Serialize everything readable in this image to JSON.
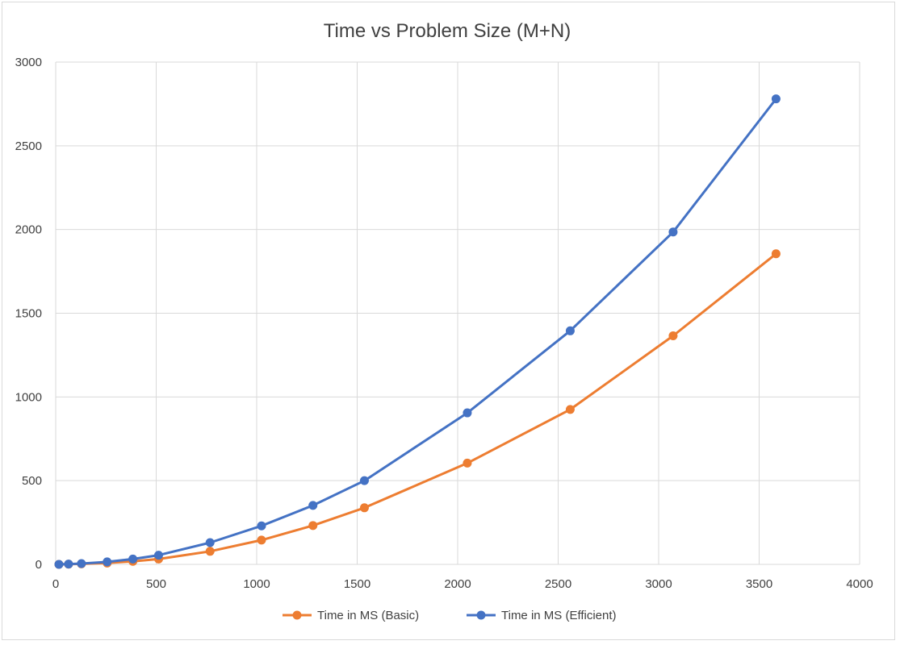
{
  "chart_data": {
    "type": "line",
    "title": "Time vs Problem Size (M+N)",
    "xlabel": "",
    "ylabel": "",
    "xlim": [
      0,
      4000
    ],
    "ylim": [
      0,
      3000
    ],
    "x_ticks": [
      "0",
      "500",
      "1000",
      "1500",
      "2000",
      "2500",
      "3000",
      "3500",
      "4000"
    ],
    "y_ticks": [
      "0",
      "500",
      "1000",
      "1500",
      "2000",
      "2500",
      "3000"
    ],
    "grid": true,
    "legend_position": "bottom",
    "series": [
      {
        "name": "Time in MS (Basic)",
        "color": "#ED7D31",
        "x": [
          16,
          64,
          128,
          256,
          384,
          512,
          768,
          1024,
          1280,
          1536,
          2048,
          2560,
          3072,
          3584
        ],
        "y": [
          0,
          1,
          3,
          8,
          18,
          32,
          78,
          145,
          232,
          338,
          605,
          925,
          1365,
          1855
        ]
      },
      {
        "name": "Time in MS (Efficient)",
        "color": "#4472C4",
        "x": [
          16,
          64,
          128,
          256,
          384,
          512,
          768,
          1024,
          1280,
          1536,
          2048,
          2560,
          3072,
          3584
        ],
        "y": [
          0,
          2,
          5,
          15,
          32,
          55,
          130,
          230,
          352,
          500,
          905,
          1395,
          1985,
          2780
        ]
      }
    ]
  }
}
